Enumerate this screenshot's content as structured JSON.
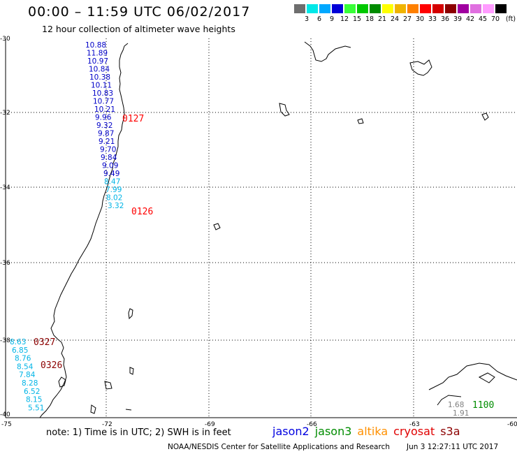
{
  "header": {
    "title": "00:00 – 11:59 UTC 06/02/2017",
    "subtitle": "12 hour collection of altimeter wave heights"
  },
  "color_scale": {
    "unit": "(ft)",
    "bins": [
      {
        "label": "3",
        "color": "#6e6e6e"
      },
      {
        "label": "6",
        "color": "#00e8e8"
      },
      {
        "label": "9",
        "color": "#00a8ff"
      },
      {
        "label": "12",
        "color": "#0000d8"
      },
      {
        "label": "15",
        "color": "#38ff38"
      },
      {
        "label": "18",
        "color": "#00c800"
      },
      {
        "label": "21",
        "color": "#008c00"
      },
      {
        "label": "24",
        "color": "#ffff00"
      },
      {
        "label": "27",
        "color": "#f0b400"
      },
      {
        "label": "30",
        "color": "#ff8000"
      },
      {
        "label": "33",
        "color": "#ff0000"
      },
      {
        "label": "36",
        "color": "#d40000"
      },
      {
        "label": "39",
        "color": "#8c0000"
      },
      {
        "label": "42",
        "color": "#a000a0"
      },
      {
        "label": "45",
        "color": "#e070e0"
      },
      {
        "label": "70",
        "color": "#ff9cff"
      },
      {
        "label": "",
        "color": "#000000"
      }
    ]
  },
  "axes": {
    "lat_labels": [
      "-30",
      "-32",
      "-34",
      "-36",
      "-38",
      "-40"
    ],
    "lon_labels": [
      "-75",
      "-72",
      "-69",
      "-66",
      "-63",
      "-60"
    ]
  },
  "tracks": [
    {
      "pass_time": "0127",
      "pass_color": "#ff0000",
      "values": [
        {
          "v": "10.88",
          "c": "#0000c8"
        },
        {
          "v": "11.89",
          "c": "#0000c8"
        },
        {
          "v": "10.97",
          "c": "#0000c8"
        },
        {
          "v": "10.84",
          "c": "#0000c8"
        },
        {
          "v": "10.38",
          "c": "#0000c8"
        },
        {
          "v": "10.11",
          "c": "#0000c8"
        },
        {
          "v": "10.83",
          "c": "#0000c8"
        },
        {
          "v": "10.77",
          "c": "#0000c8"
        },
        {
          "v": "10.21",
          "c": "#0000c8"
        },
        {
          "v": "9.96",
          "c": "#0000c8"
        },
        {
          "v": "9.32",
          "c": "#0000c8"
        },
        {
          "v": "9.87",
          "c": "#0000c8"
        },
        {
          "v": "9.21",
          "c": "#0000c8"
        },
        {
          "v": "9.70",
          "c": "#0000c8"
        },
        {
          "v": "9.84",
          "c": "#0000c8"
        },
        {
          "v": "9.09",
          "c": "#0000c8"
        },
        {
          "v": "9.49",
          "c": "#0000c8"
        },
        {
          "v": "8.47",
          "c": "#00b4e6"
        },
        {
          "v": "7.99",
          "c": "#00b4e6"
        },
        {
          "v": "8.02",
          "c": "#00b4e6"
        },
        {
          "v": "3.32",
          "c": "#00b4e6"
        }
      ]
    },
    {
      "pass_time": "0126",
      "pass_color": "#ff0000"
    },
    {
      "pass_time": "0327",
      "pass_color": "#8c0000",
      "values": [
        {
          "v": "8.63",
          "c": "#00b4e6"
        },
        {
          "v": "6.85",
          "c": "#00b4e6"
        },
        {
          "v": "8.76",
          "c": "#00b4e6"
        },
        {
          "v": "8.54",
          "c": "#00b4e6"
        },
        {
          "v": "7.84",
          "c": "#00b4e6"
        },
        {
          "v": "8.28",
          "c": "#00b4e6"
        },
        {
          "v": "6.52",
          "c": "#00b4e6"
        },
        {
          "v": "8.15",
          "c": "#00b4e6"
        },
        {
          "v": "5.51",
          "c": "#00b4e6"
        }
      ]
    },
    {
      "pass_time": "0326",
      "pass_color": "#8c0000"
    },
    {
      "pass_time": "1100",
      "pass_color": "#008c00",
      "values": [
        {
          "v": "1.68",
          "c": "#808080"
        },
        {
          "v": "1.91",
          "c": "#808080"
        }
      ]
    }
  ],
  "footer": {
    "note": "note: 1) Time is in UTC; 2) SWH is in feet",
    "satellites": [
      {
        "name": "jason2",
        "color": "#0000e0"
      },
      {
        "name": "jason3",
        "color": "#008c00"
      },
      {
        "name": "altika",
        "color": "#ff9000"
      },
      {
        "name": "cryosat",
        "color": "#e00000"
      },
      {
        "name": "s3a",
        "color": "#8c0000"
      }
    ],
    "credit": "NOAA/NESDIS Center for Satellite Applications and Research",
    "timestamp": "Jun  3 12:27:11 UTC 2017"
  }
}
